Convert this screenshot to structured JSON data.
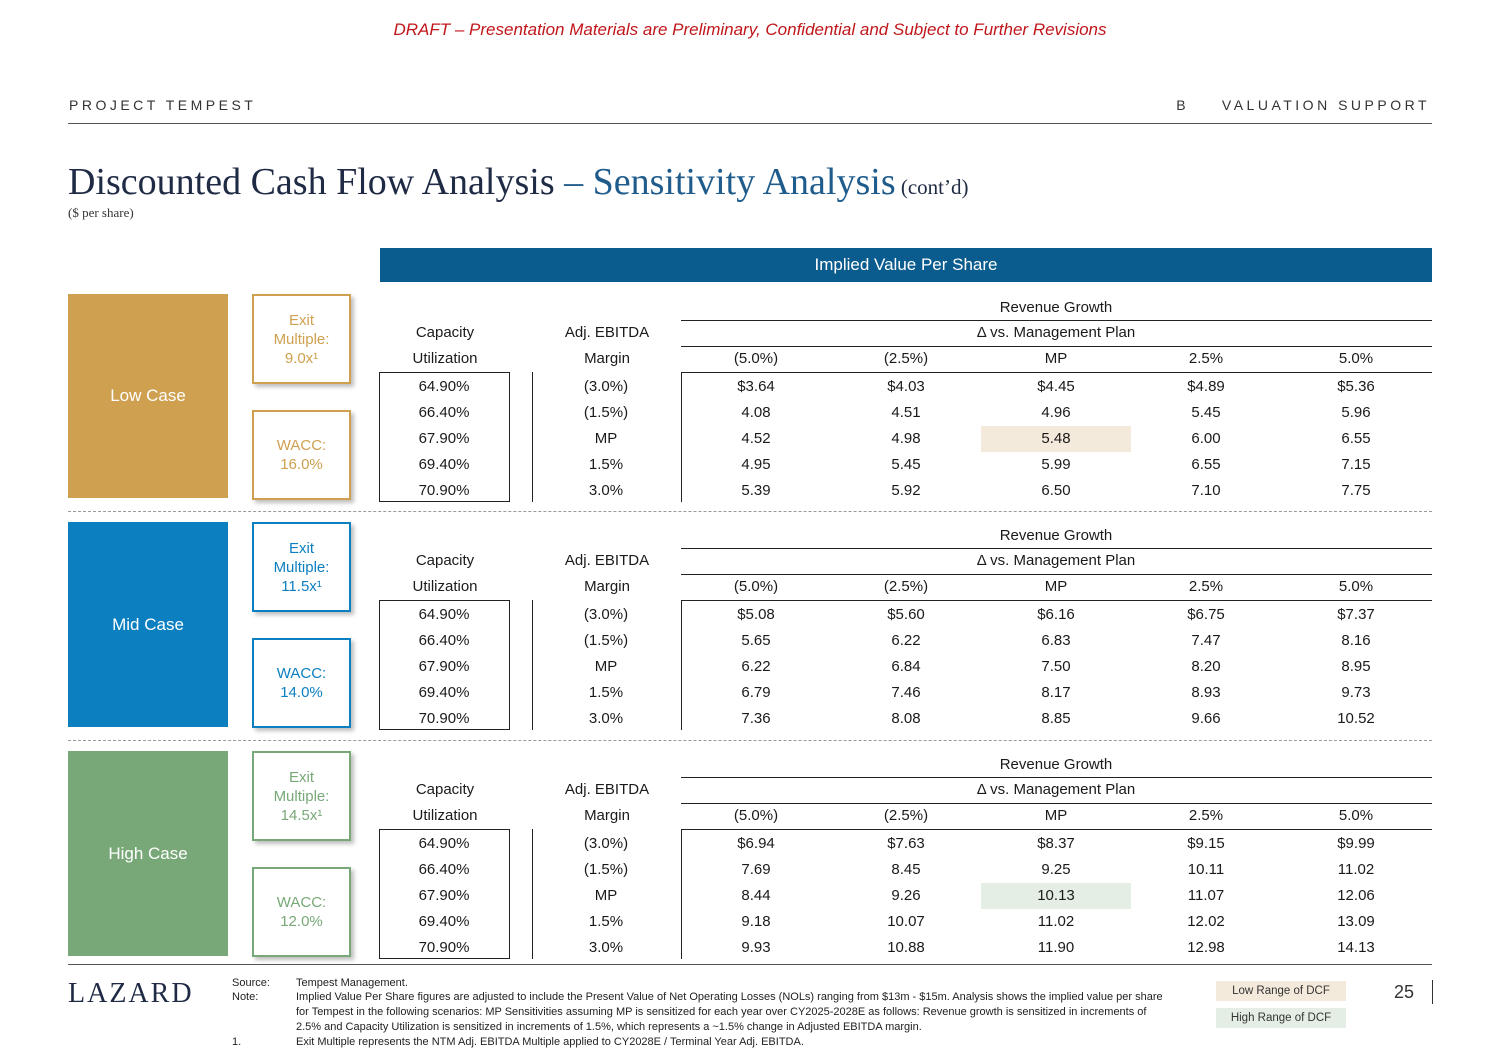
{
  "draft_notice": "DRAFT – Presentation Materials are Preliminary, Confidential and Subject to Further Revisions",
  "header": {
    "project": "PROJECT TEMPEST",
    "section_letter": "B",
    "section_title": "VALUATION SUPPORT"
  },
  "title": {
    "main": "Discounted Cash Flow Analysis",
    "dash": " – ",
    "highlight": "Sensitivity Analysis",
    "suffix": " (cont’d)",
    "units": "($ per share)"
  },
  "banner": "Implied Value Per Share",
  "table_header": {
    "capacity_1": "Capacity",
    "capacity_2": "Utilization",
    "ebitda_1": "Adj. EBITDA",
    "ebitda_2": "Margin",
    "rev_growth": "Revenue Growth",
    "vs_plan": "Δ vs. Management Plan",
    "columns": [
      "(5.0%)",
      "(2.5%)",
      "MP",
      "2.5%",
      "5.0%"
    ]
  },
  "row_labels": {
    "capacity": [
      "64.90%",
      "66.40%",
      "67.90%",
      "69.40%",
      "70.90%"
    ],
    "margin": [
      "(3.0%)",
      "(1.5%)",
      "MP",
      "1.5%",
      "3.0%"
    ]
  },
  "cases": [
    {
      "name": "Low Case",
      "color": "#cfa050",
      "exit_label": "Exit Multiple:",
      "exit_value": "9.0x¹",
      "wacc_label": "WACC:",
      "wacc_value": "16.0%",
      "highlight_color": "#f4eadc",
      "values": [
        [
          "$3.64",
          "$4.03",
          "$4.45",
          "$4.89",
          "$5.36"
        ],
        [
          "4.08",
          "4.51",
          "4.96",
          "5.45",
          "5.96"
        ],
        [
          "4.52",
          "4.98",
          "5.48",
          "6.00",
          "6.55"
        ],
        [
          "4.95",
          "5.45",
          "5.99",
          "6.55",
          "7.15"
        ],
        [
          "5.39",
          "5.92",
          "6.50",
          "7.10",
          "7.75"
        ]
      ]
    },
    {
      "name": "Mid Case",
      "color": "#0b7fc0",
      "exit_label": "Exit Multiple:",
      "exit_value": "11.5x¹",
      "wacc_label": "WACC:",
      "wacc_value": "14.0%",
      "highlight_color": "",
      "values": [
        [
          "$5.08",
          "$5.60",
          "$6.16",
          "$6.75",
          "$7.37"
        ],
        [
          "5.65",
          "6.22",
          "6.83",
          "7.47",
          "8.16"
        ],
        [
          "6.22",
          "6.84",
          "7.50",
          "8.20",
          "8.95"
        ],
        [
          "6.79",
          "7.46",
          "8.17",
          "8.93",
          "9.73"
        ],
        [
          "7.36",
          "8.08",
          "8.85",
          "9.66",
          "10.52"
        ]
      ]
    },
    {
      "name": "High Case",
      "color": "#78a878",
      "exit_label": "Exit Multiple:",
      "exit_value": "14.5x¹",
      "wacc_label": "WACC:",
      "wacc_value": "12.0%",
      "highlight_color": "#e4eee4",
      "values": [
        [
          "$6.94",
          "$7.63",
          "$8.37",
          "$9.15",
          "$9.99"
        ],
        [
          "7.69",
          "8.45",
          "9.25",
          "10.11",
          "11.02"
        ],
        [
          "8.44",
          "9.26",
          "10.13",
          "11.07",
          "12.06"
        ],
        [
          "9.18",
          "10.07",
          "11.02",
          "12.02",
          "13.09"
        ],
        [
          "9.93",
          "10.88",
          "11.90",
          "12.98",
          "14.13"
        ]
      ]
    }
  ],
  "footer": {
    "logo": "LAZARD",
    "source_label": "Source:",
    "source_text": "Tempest Management.",
    "note_label": "Note:",
    "note_text": "Implied Value Per Share figures are adjusted to include the Present Value of Net Operating Losses (NOLs) ranging from $13m - $15m. Analysis shows the implied value per share for Tempest in the following scenarios: MP Sensitivities assuming MP is sensitized for each year over CY2025-2028E as follows: Revenue growth is sensitized in increments of 2.5% and Capacity Utilization is sensitized in increments of 1.5%, which represents a ~1.5% change in Adjusted EBITDA margin.",
    "fn1_label": "1.",
    "fn1_text": "Exit Multiple represents the NTM Adj. EBITDA Multiple applied to CY2028E / Terminal Year Adj. EBITDA.",
    "legend_low": "Low Range of DCF",
    "legend_low_color": "#f4eadc",
    "legend_high": "High Range of DCF",
    "legend_high_color": "#e4eee4",
    "page_number": "25"
  }
}
